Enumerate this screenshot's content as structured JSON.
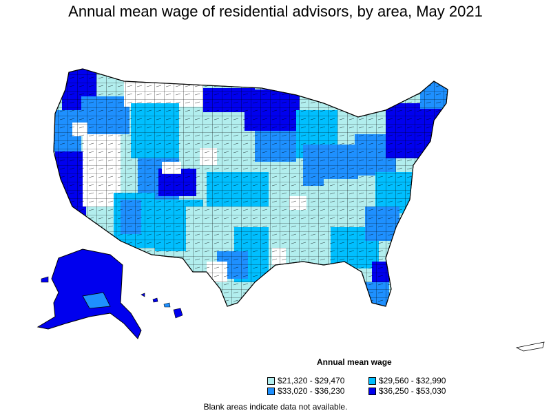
{
  "title": "Annual mean wage of residential advisors, by area, May 2021",
  "legend": {
    "title": "Annual mean wage",
    "items": [
      {
        "label": "$21,320 - $29,470",
        "color": "#b2eeee"
      },
      {
        "label": "$29,560 - $32,990",
        "color": "#00bfff"
      },
      {
        "label": "$33,020 - $36,230",
        "color": "#1e90ff"
      },
      {
        "label": "$36,250 - $53,030",
        "color": "#0000ee"
      }
    ]
  },
  "note": "Blank areas indicate data not available.",
  "colors": {
    "none": "#ffffff",
    "c1": "#b2eeee",
    "c2": "#00bfff",
    "c3": "#1e90ff",
    "c4": "#0000ee",
    "border": "#000000"
  }
}
